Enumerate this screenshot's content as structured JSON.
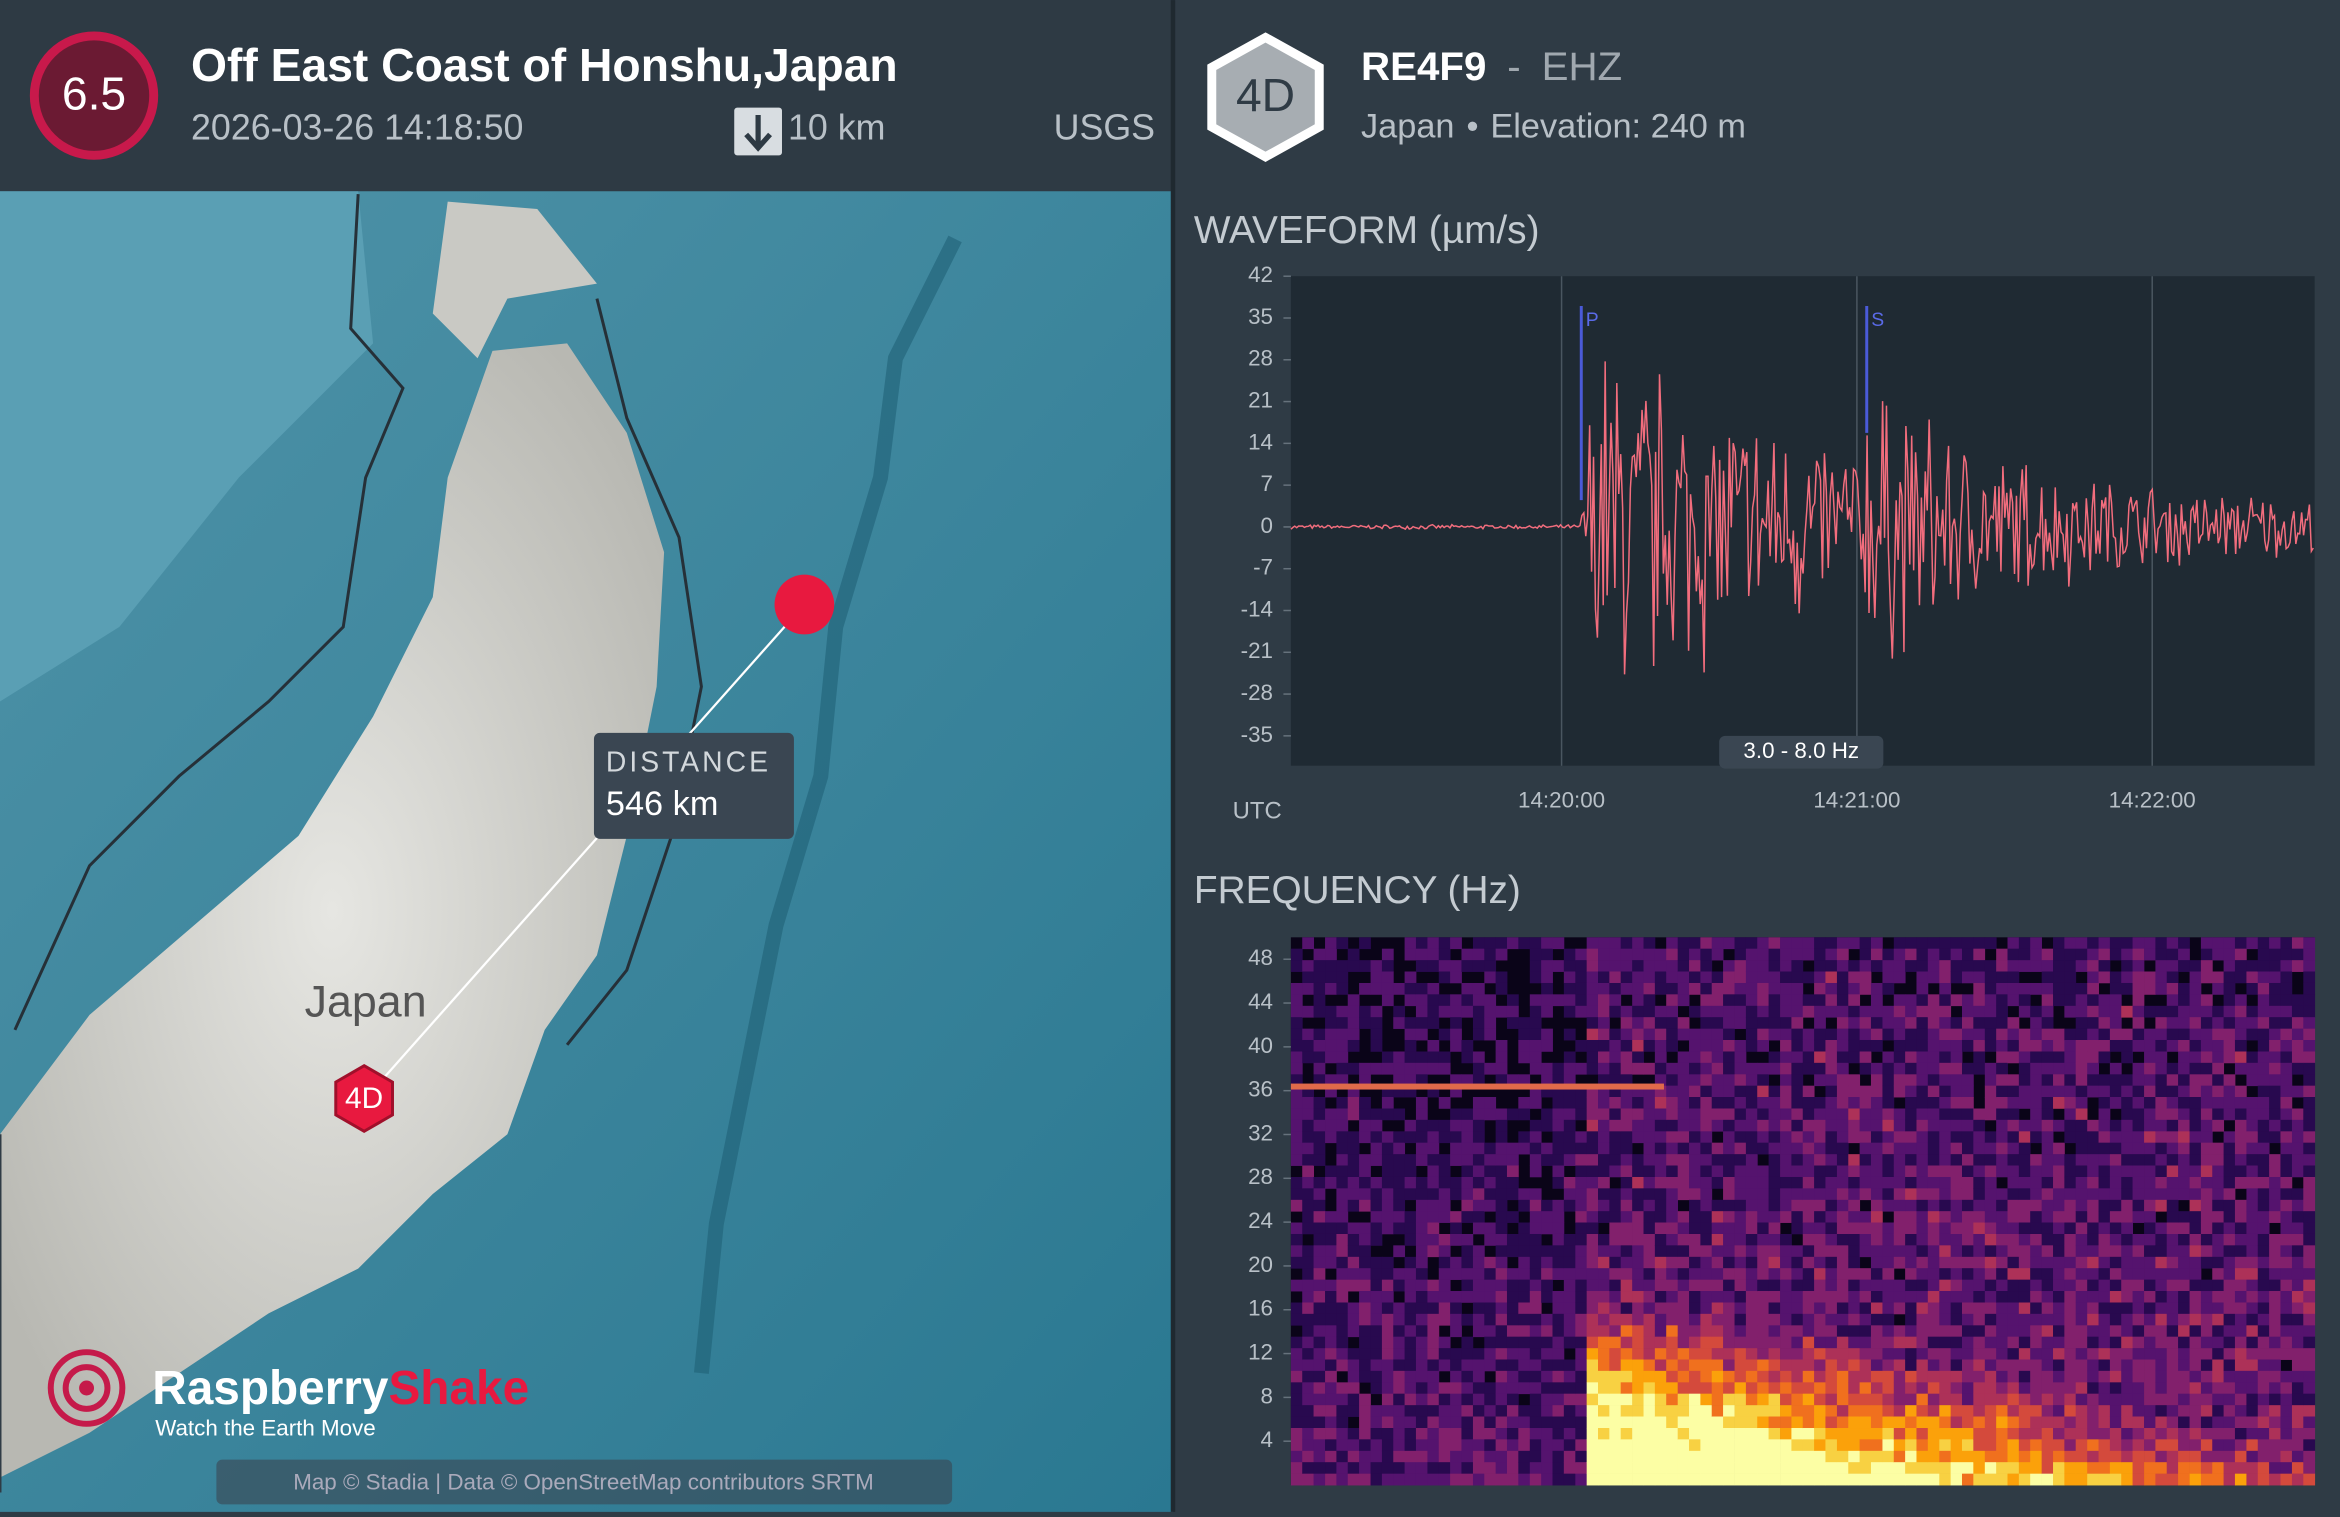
{
  "event": {
    "magnitude": "6.5",
    "title": "Off East Coast of Honshu,Japan",
    "time": "2026-03-26 14:18:50",
    "depth": "10 km",
    "source": "USGS"
  },
  "station": {
    "code": "4D",
    "name": "RE4F9",
    "separator": "-",
    "channel": "EHZ",
    "location": "Japan",
    "elevation": "Elevation: 240 m"
  },
  "map": {
    "distance_label": "DISTANCE",
    "distance": "546 km",
    "country": "Japan",
    "marker": "4D",
    "brand": "Raspberry",
    "brand_accent": "Shake",
    "tagline": "Watch the Earth Move",
    "attribution": "Map © Stadia | Data © OpenStreetMap contributors SRTM"
  },
  "waveform": {
    "title": "WAVEFORM (µm/s)",
    "ylim": [
      -40,
      42
    ],
    "yticks": [
      -35,
      -28,
      -21,
      -14,
      -7,
      0,
      7,
      14,
      21,
      28,
      35,
      42
    ],
    "xlim": [
      1145,
      1353
    ],
    "xticks": [
      {
        "value": 1200,
        "label": "14:20:00"
      },
      {
        "value": 1260,
        "label": "14:21:00"
      },
      {
        "value": 1320,
        "label": "14:22:00"
      }
    ],
    "x_unit": "UTC",
    "phases": [
      {
        "label": "P",
        "time": 1204
      },
      {
        "label": "S",
        "time": 1262
      }
    ],
    "filter": "3.0 - 8.0 Hz"
  },
  "frequency": {
    "title": "FREQUENCY (Hz)",
    "ylim": [
      0,
      50
    ],
    "yticks": [
      4,
      8,
      12,
      16,
      20,
      24,
      28,
      32,
      36,
      40,
      44,
      48
    ]
  }
}
